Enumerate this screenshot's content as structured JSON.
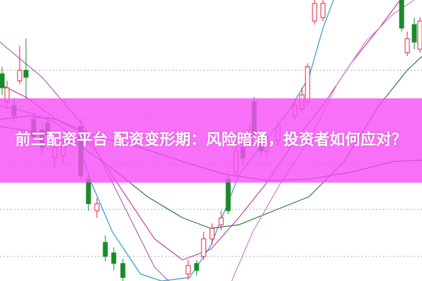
{
  "headline": "前三配资平台 配资变形期：风险暗涌，投资者如何应对？",
  "colors": {
    "banner": "#f550f5",
    "up_candle": "#e0203a",
    "down_candle": "#1a8a2a",
    "ma_short": "#2a9ad0",
    "ma_mid": "#c040a0",
    "ma_long": "#2a7a3a",
    "ma_longest": "#404090"
  }
}
